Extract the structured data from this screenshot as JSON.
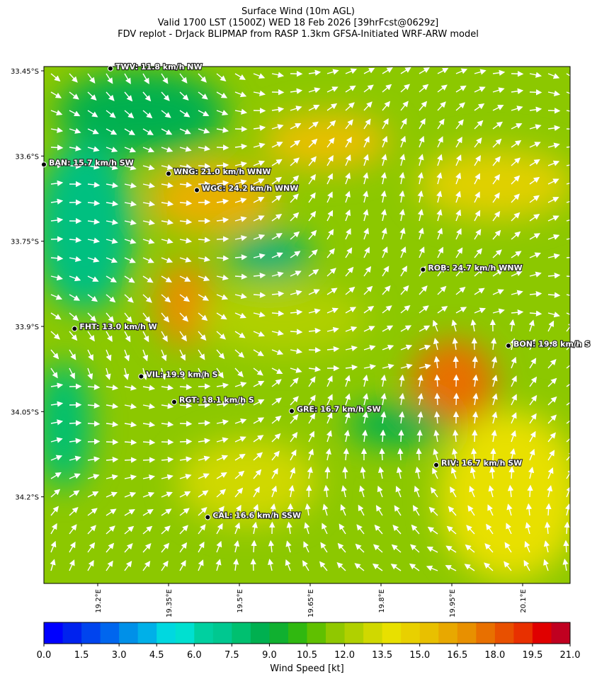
{
  "header": {
    "title_lines": [
      "Surface Wind (10m AGL)",
      "Valid 1700 LST (1500Z) WED 18 Feb 2026 [39hrFcst@0629z]",
      "FDV replot - DrJack BLIPMAP from RASP 1.3km GFSA-Initiated WRF-ARW model"
    ]
  },
  "map": {
    "lonlim": [
      19.086,
      20.2005
    ],
    "latlim": [
      33.4425,
      34.3525
    ],
    "lon_ticks": [
      {
        "value": 19.2,
        "label": "19.2°E"
      },
      {
        "value": 19.35,
        "label": "19.35°E"
      },
      {
        "value": 19.5,
        "label": "19.5°E"
      },
      {
        "value": 19.65,
        "label": "19.65°E"
      },
      {
        "value": 19.8,
        "label": "19.8°E"
      },
      {
        "value": 19.95,
        "label": "19.95°E"
      },
      {
        "value": 20.1,
        "label": "20.1°E"
      }
    ],
    "lat_ticks": [
      {
        "value": 33.45,
        "label": "33.45°S"
      },
      {
        "value": 33.6,
        "label": "33.6°S"
      },
      {
        "value": 33.75,
        "label": "33.75°S"
      },
      {
        "value": 33.9,
        "label": "33.9°S"
      },
      {
        "value": 34.05,
        "label": "34.05°S"
      },
      {
        "value": 34.2,
        "label": "34.2°S"
      }
    ],
    "stations": [
      {
        "label": "TWV: 11.8 km/h NW",
        "lon": 19.227,
        "lat": 33.446
      },
      {
        "label": "BAN: 15.7 km/h SW",
        "lon": 19.086,
        "lat": 33.615
      },
      {
        "label": "WNG: 21.0 km/h WNW",
        "lon": 19.35,
        "lat": 33.631
      },
      {
        "label": "WGC: 24.2 km/h WNW",
        "lon": 19.41,
        "lat": 33.66
      },
      {
        "label": "ROB: 24.7 km/h WNW",
        "lon": 19.889,
        "lat": 33.8
      },
      {
        "label": "FHT: 13.0 km/h W",
        "lon": 19.151,
        "lat": 33.904
      },
      {
        "label": "BON: 19.8 km/h S",
        "lon": 20.07,
        "lat": 33.934
      },
      {
        "label": "VIL: 19.9 km/h S",
        "lon": 19.292,
        "lat": 33.988
      },
      {
        "label": "RGT: 18.1 km/h S",
        "lon": 19.362,
        "lat": 34.033
      },
      {
        "label": "GRE: 16.7 km/h SW",
        "lon": 19.611,
        "lat": 34.049
      },
      {
        "label": "RIV: 16.7 km/h SW",
        "lon": 19.917,
        "lat": 34.144
      },
      {
        "label": "CAL: 16.6 km/h SSW",
        "lon": 19.433,
        "lat": 34.236
      }
    ]
  },
  "colorbar": {
    "lim": [
      0,
      21
    ],
    "colors": [
      "#0000ff",
      "#0022ee",
      "#0044ee",
      "#0066ee",
      "#0090e8",
      "#00b0e8",
      "#00d8e0",
      "#00e0d0",
      "#00d0a0",
      "#00c890",
      "#00c070",
      "#00b050",
      "#10b030",
      "#30b810",
      "#60c000",
      "#90c800",
      "#b0d000",
      "#d0d800",
      "#e8e000",
      "#e8d000",
      "#e8c000",
      "#e8a800",
      "#e89000",
      "#e87000",
      "#e85000",
      "#e83000",
      "#e00000",
      "#c00020"
    ],
    "ticks": [
      {
        "value": 0,
        "label": "0.0"
      },
      {
        "value": 1.5,
        "label": "1.5"
      },
      {
        "value": 3,
        "label": "3.0"
      },
      {
        "value": 4.5,
        "label": "4.5"
      },
      {
        "value": 6,
        "label": "6.0"
      },
      {
        "value": 7.5,
        "label": "7.5"
      },
      {
        "value": 9,
        "label": "9.0"
      },
      {
        "value": 10.5,
        "label": "10.5"
      },
      {
        "value": 12,
        "label": "12.0"
      },
      {
        "value": 13.5,
        "label": "13.5"
      },
      {
        "value": 15,
        "label": "15.0"
      },
      {
        "value": 16.5,
        "label": "16.5"
      },
      {
        "value": 18,
        "label": "18.0"
      },
      {
        "value": 19.5,
        "label": "19.5"
      },
      {
        "value": 21,
        "label": "21.0"
      }
    ],
    "label": "Wind Speed [kt]"
  }
}
